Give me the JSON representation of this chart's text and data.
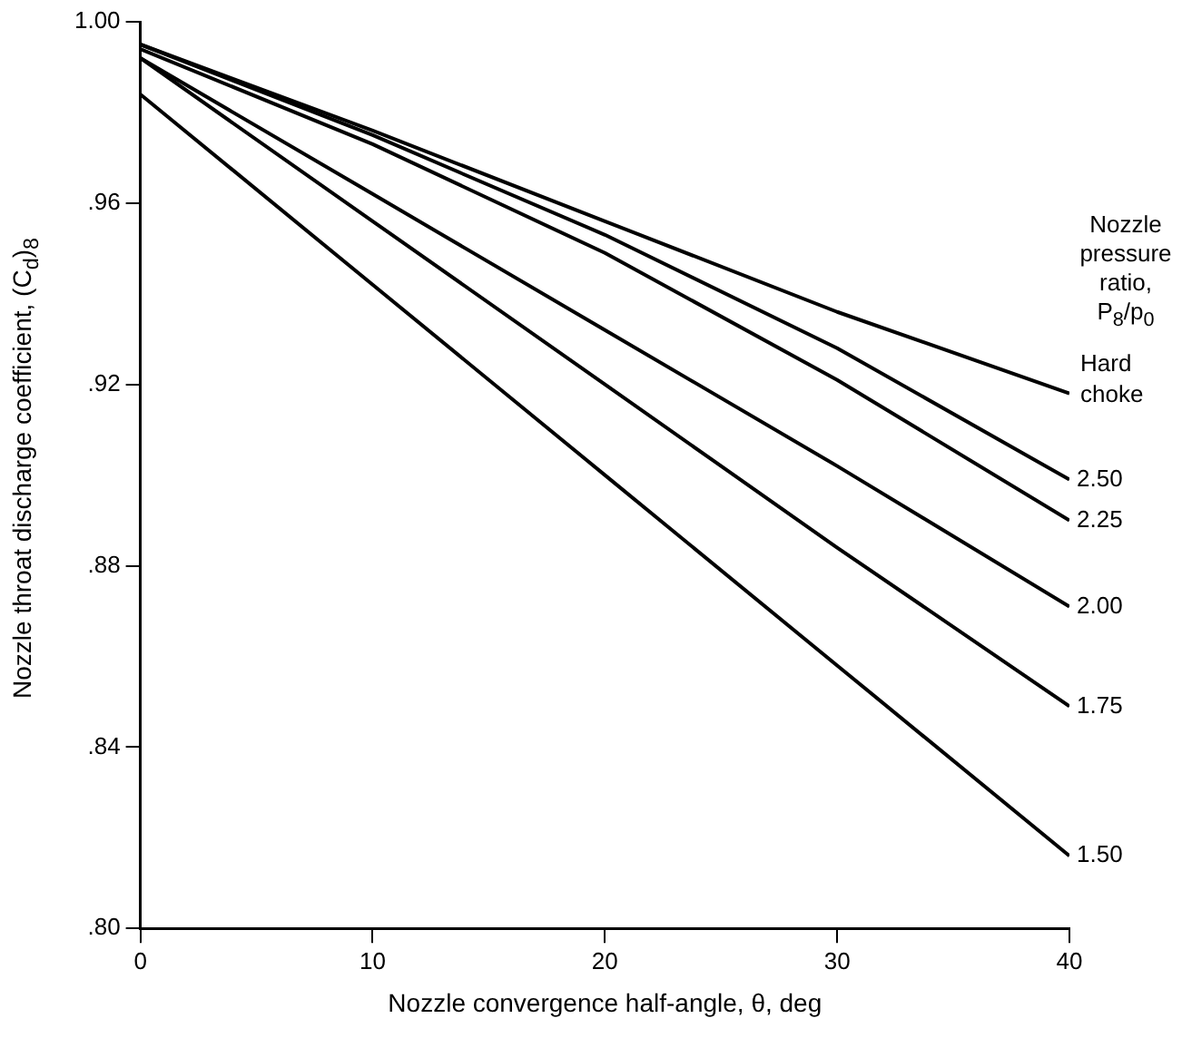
{
  "chart_data": {
    "type": "line",
    "xlabel": "Nozzle convergence half-angle, θ, deg",
    "ylabel": "Nozzle throat discharge coefficient, (C$_{d}$)$_{8}$",
    "legend_title": "Nozzle pressure ratio, P$_{8}$/p$_{0}$",
    "x": [
      0,
      10,
      20,
      30,
      40
    ],
    "series": [
      {
        "name": "Hard choke",
        "color": "#000000",
        "values": [
          0.995,
          0.976,
          0.956,
          0.936,
          0.918
        ]
      },
      {
        "name": "2.50",
        "color": "#000000",
        "values": [
          0.995,
          0.975,
          0.953,
          0.928,
          0.899
        ]
      },
      {
        "name": "2.25",
        "color": "#000000",
        "values": [
          0.994,
          0.973,
          0.949,
          0.921,
          0.89
        ]
      },
      {
        "name": "2.00",
        "color": "#000000",
        "values": [
          0.992,
          0.962,
          0.932,
          0.902,
          0.871
        ]
      },
      {
        "name": "1.75",
        "color": "#000000",
        "values": [
          0.992,
          0.956,
          0.92,
          0.884,
          0.849
        ]
      },
      {
        "name": "1.50",
        "color": "#000000",
        "values": [
          0.984,
          0.942,
          0.9,
          0.858,
          0.816
        ]
      }
    ],
    "xlim": [
      0,
      40
    ],
    "xticks": [
      0,
      10,
      20,
      30,
      40
    ],
    "ylim": [
      0.8,
      1.0
    ],
    "yticks": [
      {
        "value": 0.8,
        "label": ".80"
      },
      {
        "value": 0.84,
        "label": ".84"
      },
      {
        "value": 0.88,
        "label": ".88"
      },
      {
        "value": 0.92,
        "label": ".92"
      },
      {
        "value": 0.96,
        "label": ".96"
      },
      {
        "value": 1.0,
        "label": "1.00"
      }
    ],
    "grid": false,
    "legend": false,
    "marker": "none",
    "line_style": "solid"
  }
}
